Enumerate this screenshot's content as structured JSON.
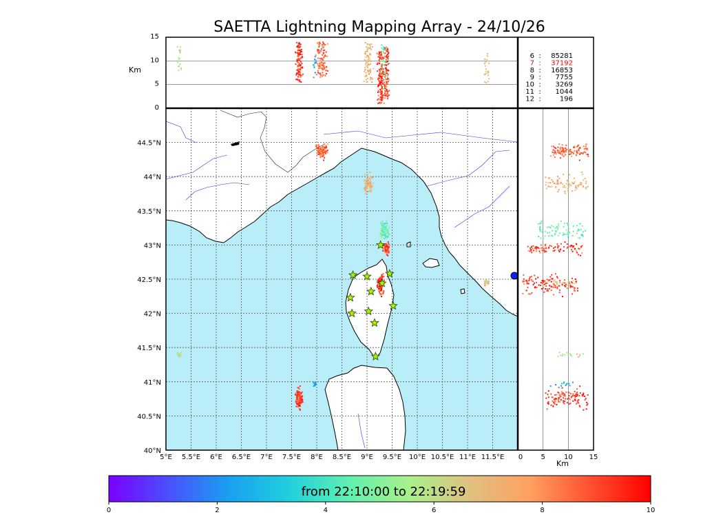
{
  "title": "SAETTA Lightning Mapping Array - 24/10/26",
  "colors": {
    "sea": "#b9eef9",
    "land": "#ffffff",
    "coast": "#000000",
    "river": "#3030f0",
    "border": "#222222",
    "grid": "#555555",
    "star": "#aaf000",
    "highlight_count": "#ff0000",
    "colorbar_stops": [
      "#7a00ff",
      "#4a50ff",
      "#1aa0f0",
      "#20d0dd",
      "#60f0b0",
      "#aaf08a",
      "#e0c080",
      "#ffa060",
      "#ff5030",
      "#ff0000"
    ]
  },
  "counts": [
    {
      "label": "6",
      "value": "85281",
      "highlight": false
    },
    {
      "label": "7",
      "value": "37192",
      "highlight": true
    },
    {
      "label": "8",
      "value": "16853",
      "highlight": false
    },
    {
      "label": "9",
      "value": "7755",
      "highlight": false
    },
    {
      "label": "10",
      "value": "3269",
      "highlight": false
    },
    {
      "label": "11",
      "value": "1044",
      "highlight": false
    },
    {
      "label": "12",
      "value": "196",
      "highlight": false
    }
  ],
  "colorbar": {
    "label": "from 22:10:00 to 22:19:59",
    "ticks": [
      "0",
      "2",
      "4",
      "6",
      "8",
      "10"
    ]
  },
  "chart_data": {
    "type": "scatter",
    "title": "SAETTA Lightning Mapping Array - 24/10/26",
    "map": {
      "xlim": [
        5.0,
        12.0
      ],
      "ylim": [
        40.0,
        45.0
      ],
      "xticks": [
        "5°E",
        "5.5°E",
        "6°E",
        "6.5°E",
        "7°E",
        "7.5°E",
        "8°E",
        "8.5°E",
        "9°E",
        "9.5°E",
        "10°E",
        "10.5°E",
        "11°E",
        "11.5°E"
      ],
      "yticks": [
        "40°N",
        "40.5°N",
        "41°N",
        "41.5°N",
        "42°N",
        "42.5°N",
        "43°N",
        "43.5°N",
        "44°N",
        "44.5°N"
      ],
      "grid": true
    },
    "altitude_top": {
      "ylabel": "Km",
      "ylim": [
        0,
        15
      ],
      "yticks": [
        "0",
        "5",
        "10",
        "15"
      ]
    },
    "altitude_side": {
      "xlabel": "Km",
      "xlim": [
        0,
        15
      ],
      "xticks": [
        "0",
        "5",
        "10",
        "15"
      ]
    },
    "color_scale": {
      "label": "from 22:10:00 to 22:19:59",
      "range": [
        0,
        10
      ]
    },
    "clusters": [
      {
        "lon": 8.1,
        "lat": 44.37,
        "rx": 0.15,
        "ry": 0.14,
        "minute": 8.7,
        "n": 110,
        "alt_lo": 6.5,
        "alt_hi": 14
      },
      {
        "lon": 9.02,
        "lat": 43.9,
        "rx": 0.13,
        "ry": 0.2,
        "minute": 7.2,
        "n": 80,
        "alt_lo": 5.5,
        "alt_hi": 14
      },
      {
        "lon": 9.35,
        "lat": 43.2,
        "rx": 0.12,
        "ry": 0.22,
        "minute": 4.6,
        "n": 80,
        "alt_lo": 4,
        "alt_hi": 13.5
      },
      {
        "lon": 9.38,
        "lat": 42.95,
        "rx": 0.09,
        "ry": 0.12,
        "minute": 9.0,
        "n": 90,
        "alt_lo": 2,
        "alt_hi": 13
      },
      {
        "lon": 9.27,
        "lat": 42.42,
        "rx": 0.1,
        "ry": 0.2,
        "minute": 9.3,
        "n": 120,
        "alt_lo": 1,
        "alt_hi": 12
      },
      {
        "lon": 7.65,
        "lat": 40.76,
        "rx": 0.1,
        "ry": 0.2,
        "minute": 9.2,
        "n": 110,
        "alt_lo": 5.5,
        "alt_hi": 14
      },
      {
        "lon": 7.95,
        "lat": 40.97,
        "rx": 0.05,
        "ry": 0.05,
        "minute": 2.5,
        "n": 12,
        "alt_lo": 6,
        "alt_hi": 12
      },
      {
        "lon": 5.27,
        "lat": 41.4,
        "rx": 0.05,
        "ry": 0.06,
        "minute": 6.0,
        "n": 18,
        "alt_lo": 8,
        "alt_hi": 13
      },
      {
        "lon": 11.38,
        "lat": 42.45,
        "rx": 0.1,
        "ry": 0.06,
        "minute": 6.6,
        "n": 25,
        "alt_lo": 5,
        "alt_hi": 12
      }
    ],
    "stations": [
      {
        "lon": 8.72,
        "lat": 42.56
      },
      {
        "lon": 9.0,
        "lat": 42.54
      },
      {
        "lon": 9.45,
        "lat": 42.58
      },
      {
        "lon": 9.3,
        "lat": 42.44
      },
      {
        "lon": 9.08,
        "lat": 42.32
      },
      {
        "lon": 8.67,
        "lat": 42.23
      },
      {
        "lon": 9.52,
        "lat": 42.11
      },
      {
        "lon": 8.7,
        "lat": 42.0
      },
      {
        "lon": 9.03,
        "lat": 42.03
      },
      {
        "lon": 9.15,
        "lat": 41.86
      },
      {
        "lon": 9.17,
        "lat": 41.37
      },
      {
        "lon": 9.27,
        "lat": 43.0
      }
    ]
  }
}
